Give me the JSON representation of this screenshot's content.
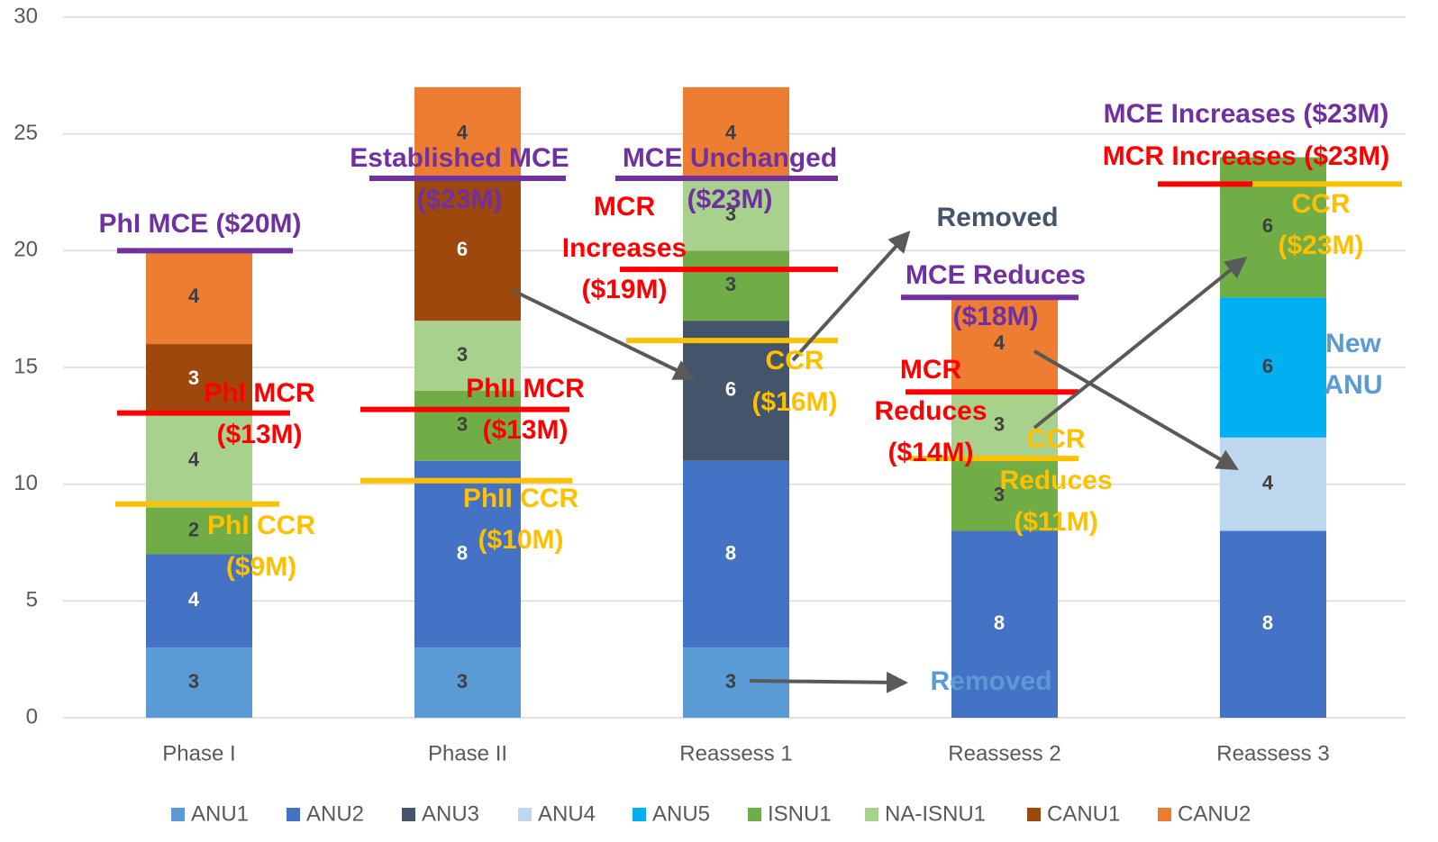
{
  "chart_data": {
    "type": "bar",
    "stacked": true,
    "categories": [
      "Phase I",
      "Phase II",
      "Reassess 1",
      "Reassess 2",
      "Reassess 3"
    ],
    "ylim": [
      0,
      30
    ],
    "yticks": [
      0,
      5,
      10,
      15,
      20,
      25,
      30
    ],
    "grid": true,
    "legend": "bottom",
    "series": [
      {
        "name": "ANU1",
        "color": "#5b9bd5",
        "label_color": "#404040",
        "values": [
          3,
          3,
          3,
          null,
          null
        ]
      },
      {
        "name": "ANU2",
        "color": "#4472c4",
        "label_color": "#ffffff",
        "values": [
          4,
          8,
          8,
          8,
          8
        ]
      },
      {
        "name": "ANU3",
        "color": "#44546a",
        "label_color": "#ffffff",
        "values": [
          null,
          null,
          6,
          null,
          null
        ]
      },
      {
        "name": "ANU4",
        "color": "#bdd7ee",
        "label_color": "#404040",
        "values": [
          null,
          null,
          null,
          null,
          4
        ]
      },
      {
        "name": "ANU5",
        "color": "#00b0f0",
        "label_color": "#404040",
        "values": [
          null,
          null,
          null,
          null,
          6
        ]
      },
      {
        "name": "ISNU1",
        "color": "#70ad47",
        "label_color": "#404040",
        "values": [
          2,
          3,
          3,
          3,
          6
        ]
      },
      {
        "name": "NA-ISNU1",
        "color": "#a9d18e",
        "label_color": "#404040",
        "values": [
          4,
          3,
          3,
          3,
          null
        ]
      },
      {
        "name": "CANU1",
        "color": "#9e480e",
        "label_color": "#ffffff",
        "values": [
          3,
          6,
          null,
          null,
          null
        ]
      },
      {
        "name": "CANU2",
        "color": "#ed7d31",
        "label_color": "#404040",
        "values": [
          4,
          4,
          4,
          4,
          null
        ]
      }
    ],
    "reference_lines": [
      {
        "y": 20,
        "color": "#7030a0"
      },
      {
        "y": 13.05,
        "color": "#ff0000"
      },
      {
        "y": 9.15,
        "color": "#ffc000"
      },
      {
        "y": 23.1,
        "color": "#7030a0"
      },
      {
        "y": 13.2,
        "color": "#ff0000"
      },
      {
        "y": 10.15,
        "color": "#ffc000"
      },
      {
        "y": 23.1,
        "color": "#7030a0"
      },
      {
        "y": 19.2,
        "color": "#ff0000"
      },
      {
        "y": 16.15,
        "color": "#ffc000"
      },
      {
        "y": 18.0,
        "color": "#7030a0"
      },
      {
        "y": 13.95,
        "color": "#ff0000"
      },
      {
        "y": 11.1,
        "color": "#ffc000"
      },
      {
        "y": 22.85,
        "color": "#ff0000"
      },
      {
        "y": 22.85,
        "color": "#ffc000"
      }
    ],
    "annotations": [
      {
        "lines": [
          "PhI MCE ($20M)"
        ],
        "color": "#7030a0"
      },
      {
        "lines": [
          "PhI MCR",
          "($13M)"
        ],
        "color": "#ff0000"
      },
      {
        "lines": [
          "PhI CCR",
          "($9M)"
        ],
        "color": "#ffc000"
      },
      {
        "lines": [
          "Established MCE",
          "($23M)"
        ],
        "color": "#7030a0"
      },
      {
        "lines": [
          "PhII MCR",
          "($13M)"
        ],
        "color": "#ff0000"
      },
      {
        "lines": [
          "PhII CCR",
          "($10M)"
        ],
        "color": "#ffc000"
      },
      {
        "lines": [
          "MCE Unchanged",
          "($23M)"
        ],
        "color": "#7030a0"
      },
      {
        "lines": [
          "MCR",
          "Increases",
          "($19M)"
        ],
        "color": "#ff0000"
      },
      {
        "lines": [
          "CCR",
          "($16M)"
        ],
        "color": "#ffc000"
      },
      {
        "lines": [
          "Removed"
        ],
        "color": "#44546a"
      },
      {
        "lines": [
          "MCE Reduces",
          "($18M)"
        ],
        "color": "#7030a0"
      },
      {
        "lines": [
          "MCR",
          "Reduces",
          "($14M)"
        ],
        "color": "#ff0000"
      },
      {
        "lines": [
          "CCR",
          "Reduces",
          "($11M)"
        ],
        "color": "#ffc000"
      },
      {
        "lines": [
          "Removed"
        ],
        "color": "#5b9bd5"
      },
      {
        "lines": [
          "MCE Increases ($23M)"
        ],
        "color": "#7030a0"
      },
      {
        "lines": [
          "MCR Increases ($23M)"
        ],
        "color": "#ff0000"
      },
      {
        "lines": [
          "CCR",
          "($23M)"
        ],
        "color": "#ffc000"
      },
      {
        "lines": [
          "New",
          "ANU"
        ],
        "color": "#5b9bd5"
      }
    ]
  }
}
